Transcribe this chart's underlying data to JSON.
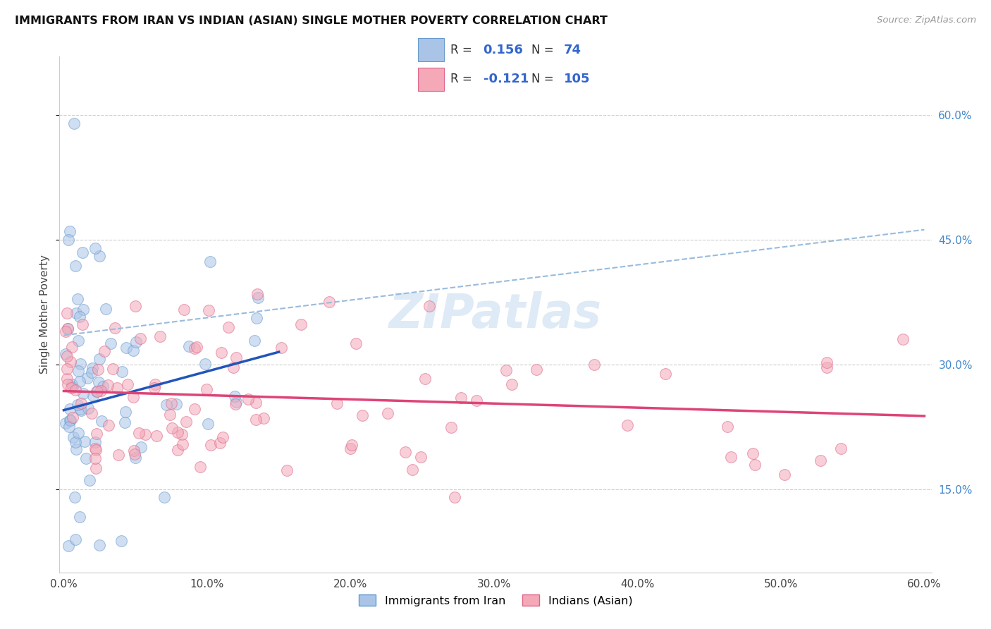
{
  "title": "IMMIGRANTS FROM IRAN VS INDIAN (ASIAN) SINGLE MOTHER POVERTY CORRELATION CHART",
  "source": "Source: ZipAtlas.com",
  "iran_color": "#aac4e8",
  "iran_edge": "#6699cc",
  "indian_color": "#f4a8b8",
  "indian_edge": "#dd6688",
  "iran_line_color": "#2255bb",
  "indian_line_color": "#dd4477",
  "dashed_line_color": "#99bbdd",
  "legend_iran_color": "#aac4e8",
  "legend_indian_color": "#f4a8b8",
  "R_iran": 0.156,
  "N_iran": 74,
  "R_indian": -0.121,
  "N_indian": 105,
  "iran_line_x0": 0.0,
  "iran_line_y0": 0.245,
  "iran_line_x1": 0.15,
  "iran_line_y1": 0.315,
  "indian_line_x0": 0.0,
  "indian_line_y0": 0.268,
  "indian_line_x1": 0.6,
  "indian_line_y1": 0.238,
  "dashed_line_x0": 0.0,
  "dashed_line_y0": 0.335,
  "dashed_line_x1": 0.6,
  "dashed_line_y1": 0.462,
  "scatter_size": 130,
  "alpha": 0.55,
  "watermark": "ZIPatlas",
  "xlim": [
    0.0,
    0.6
  ],
  "ylim": [
    0.05,
    0.67
  ],
  "x_ticks": [
    0.0,
    0.1,
    0.2,
    0.3,
    0.4,
    0.5,
    0.6
  ],
  "x_tick_labels": [
    "0.0%",
    "10.0%",
    "20.0%",
    "30.0%",
    "40.0%",
    "50.0%",
    "60.0%"
  ],
  "y_ticks": [
    0.15,
    0.3,
    0.45,
    0.6
  ],
  "y_tick_labels": [
    "15.0%",
    "30.0%",
    "45.0%",
    "60.0%"
  ]
}
